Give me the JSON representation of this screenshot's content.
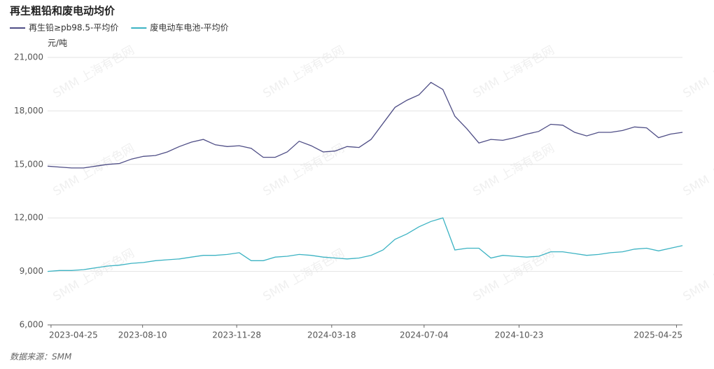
{
  "chart_data": {
    "type": "line",
    "title": "再生粗铅和废电动均价",
    "y_unit": "元/吨",
    "source": "数据来源：SMM",
    "watermark": "SMM 上海有色网",
    "x": [
      "2023-04-21",
      "2023-05-05",
      "2023-05-19",
      "2023-06-02",
      "2023-06-16",
      "2023-06-30",
      "2023-07-14",
      "2023-07-28",
      "2023-08-11",
      "2023-08-25",
      "2023-09-08",
      "2023-09-22",
      "2023-10-06",
      "2023-10-20",
      "2023-11-03",
      "2023-11-17",
      "2023-12-01",
      "2023-12-15",
      "2023-12-29",
      "2024-01-12",
      "2024-01-26",
      "2024-02-09",
      "2024-02-23",
      "2024-03-08",
      "2024-03-22",
      "2024-04-05",
      "2024-04-19",
      "2024-05-03",
      "2024-05-17",
      "2024-05-31",
      "2024-06-14",
      "2024-06-28",
      "2024-07-12",
      "2024-07-26",
      "2024-08-09",
      "2024-08-23",
      "2024-09-06",
      "2024-09-20",
      "2024-10-04",
      "2024-10-18",
      "2024-11-01",
      "2024-11-15",
      "2024-11-29",
      "2024-12-13",
      "2024-12-27",
      "2025-01-10",
      "2025-01-24",
      "2025-02-07",
      "2025-02-21",
      "2025-03-07",
      "2025-03-21",
      "2025-04-04",
      "2025-04-18",
      "2025-05-02"
    ],
    "series": [
      {
        "name": "再生铅≥pb98.5-平均价",
        "color": "#4f4e86",
        "values": [
          14900,
          14850,
          14800,
          14800,
          14900,
          15000,
          15050,
          15300,
          15450,
          15500,
          15700,
          16000,
          16250,
          16400,
          16100,
          16000,
          16050,
          15900,
          15400,
          15400,
          15700,
          16300,
          16050,
          15700,
          15750,
          16000,
          15950,
          16400,
          17300,
          18200,
          18600,
          18900,
          19600,
          19200,
          17700,
          17000,
          16200,
          16400,
          16350,
          16500,
          16700,
          16850,
          17250,
          17200,
          16800,
          16600,
          16800,
          16800,
          16900,
          17100,
          17050,
          16500,
          16700,
          16800
        ]
      },
      {
        "name": "废电动车电池-平均价",
        "color": "#3cb3c3",
        "values": [
          9000,
          9050,
          9050,
          9100,
          9200,
          9300,
          9350,
          9450,
          9500,
          9600,
          9650,
          9700,
          9800,
          9900,
          9900,
          9950,
          10050,
          9600,
          9600,
          9800,
          9850,
          9950,
          9900,
          9800,
          9750,
          9700,
          9750,
          9900,
          10200,
          10800,
          11100,
          11500,
          11800,
          12000,
          10200,
          10300,
          10300,
          9750,
          9900,
          9850,
          9800,
          9850,
          10100,
          10100,
          10000,
          9900,
          9950,
          10050,
          10100,
          10250,
          10300,
          10150,
          10300,
          10450
        ]
      }
    ],
    "xlim": [
      "2023-04-21",
      "2025-05-02"
    ],
    "xticks": [
      "2023-04-25",
      "2023-08-10",
      "2023-11-28",
      "2024-03-18",
      "2024-07-04",
      "2024-10-23",
      "2025-04-25"
    ],
    "ylim": [
      6000,
      21000
    ],
    "yticks": [
      {
        "value": 6000,
        "label": "6,000"
      },
      {
        "value": 9000,
        "label": "9,000"
      },
      {
        "value": 12000,
        "label": "12,000"
      },
      {
        "value": 15000,
        "label": "15,000"
      },
      {
        "value": 18000,
        "label": "18,000"
      },
      {
        "value": 21000,
        "label": "21,000"
      }
    ],
    "grid": true
  }
}
